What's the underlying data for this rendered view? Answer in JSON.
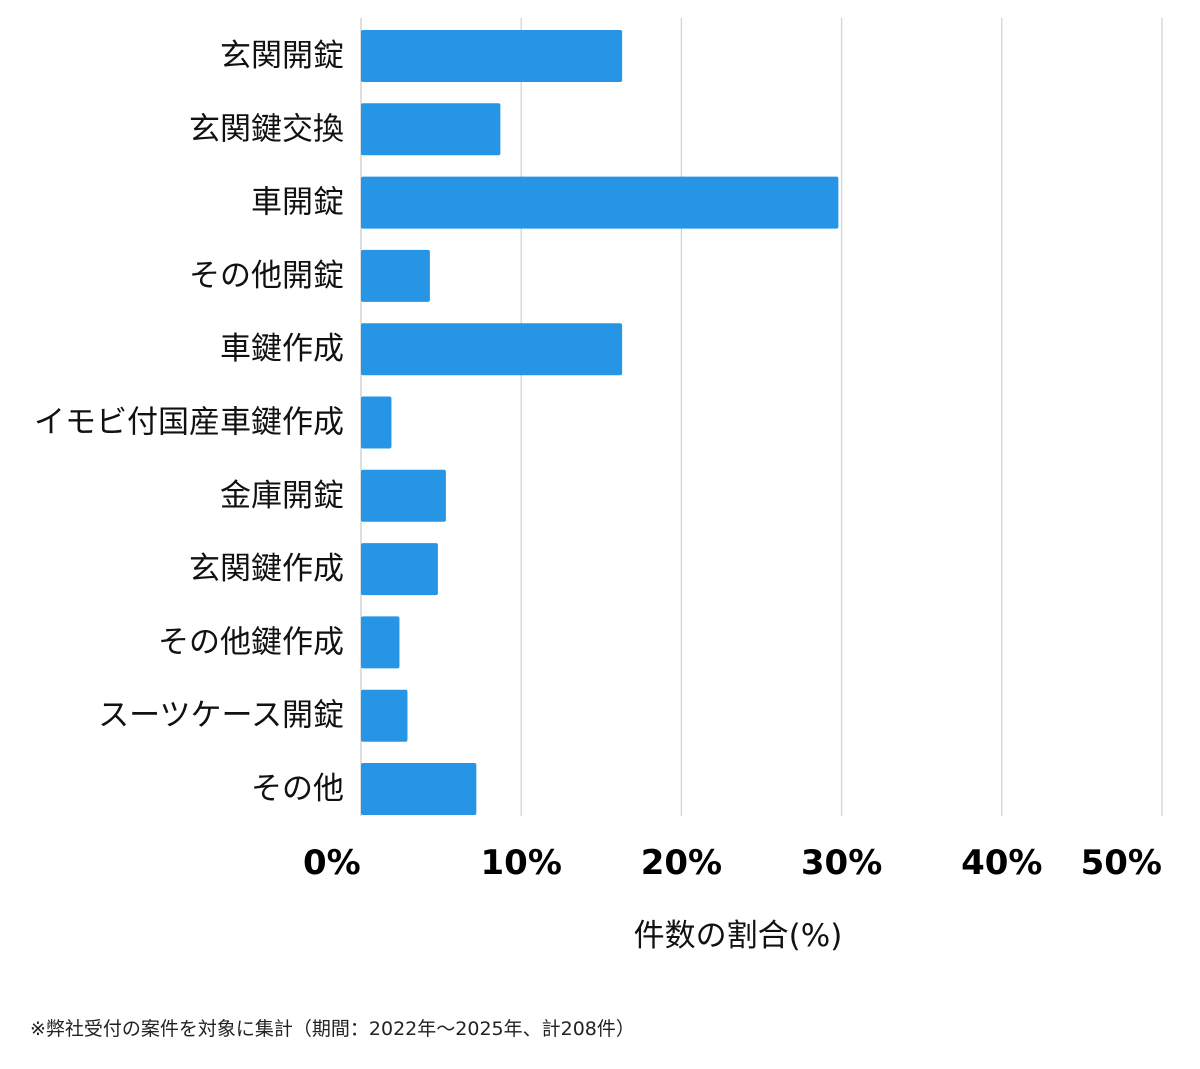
{
  "chart_data": {
    "type": "bar",
    "orientation": "horizontal",
    "categories": [
      "玄関開錠",
      "玄関鍵交換",
      "車開錠",
      "その他開錠",
      "車鍵作成",
      "イモビ付国産車鍵作成",
      "金庫開錠",
      "玄関鍵作成",
      "その他鍵作成",
      "スーツケース開錠",
      "その他"
    ],
    "values": [
      16.3,
      8.7,
      29.8,
      4.3,
      16.3,
      1.9,
      5.3,
      4.8,
      2.4,
      2.9,
      7.2
    ],
    "xlim": [
      0,
      50
    ],
    "x_ticks": [
      "0%",
      "10%",
      "20%",
      "30%",
      "40%",
      "50%"
    ],
    "x_tick_values": [
      0,
      10,
      20,
      30,
      40,
      50
    ],
    "xlabel": "件数の割合(%)",
    "ylabel": "",
    "grid": "vertical",
    "bar_color": "#2795e6",
    "grid_color": "#d4d4d4"
  },
  "footnote": "※弊社受付の案件を対象に集計（期間：2022年〜2025年、計208件）"
}
